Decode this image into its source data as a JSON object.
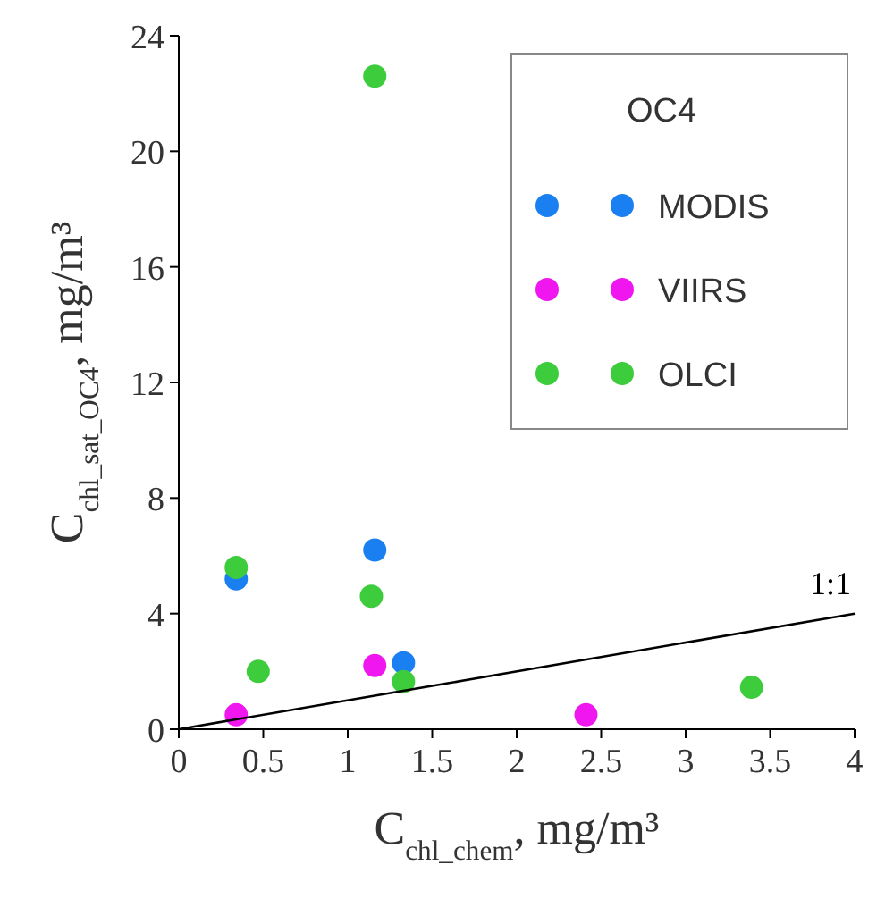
{
  "chart_data": {
    "type": "scatter",
    "xlabel": "C$_{chl_chem}$, mg/m³",
    "ylabel": "C$_{chl_sat_OC4}$, mg/m³",
    "legend_title": "OC4",
    "legend": "top right",
    "marker": "circle",
    "grid": false,
    "xlim": [
      0,
      4
    ],
    "xticks": [
      0,
      0.5,
      1,
      1.5,
      2,
      2.5,
      3,
      3.5,
      4
    ],
    "ylim": [
      0,
      24
    ],
    "yticks": [
      0,
      4,
      8,
      12,
      16,
      20,
      24
    ],
    "series": [
      {
        "name": "MODIS",
        "color": "#1a7ff0",
        "x": [
          0.34,
          1.16,
          1.33
        ],
        "values": [
          5.2,
          6.2,
          2.3
        ]
      },
      {
        "name": "VIIRS",
        "color": "#f016f0",
        "x": [
          0.34,
          1.16,
          2.41
        ],
        "values": [
          0.5,
          2.2,
          0.5
        ]
      },
      {
        "name": "OLCI",
        "color": "#3ccc3c",
        "x": [
          0.34,
          0.47,
          1.16,
          1.14,
          1.33,
          3.39
        ],
        "values": [
          5.6,
          2.0,
          22.6,
          4.6,
          1.65,
          1.45
        ]
      },
      {
        "type": "line",
        "color": "#000000",
        "x": [
          0,
          4
        ],
        "values": [
          0,
          4
        ],
        "line_style": "solid",
        "marker": "none"
      }
    ],
    "annotations": [
      "1:1"
    ]
  }
}
